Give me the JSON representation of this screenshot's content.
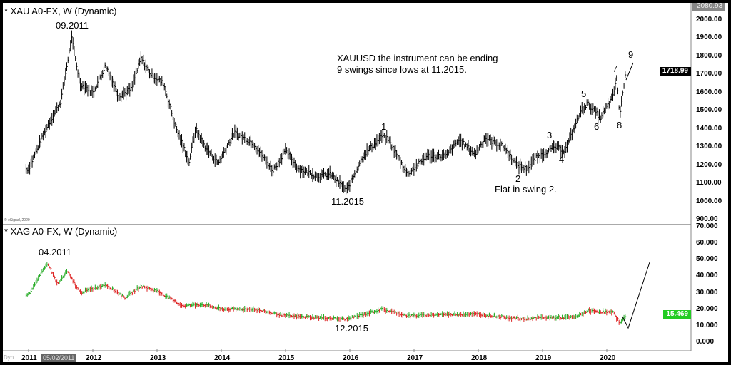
{
  "panels": {
    "gold_title": "* XAU A0-FX, W (Dynamic)",
    "silver_title": "* XAG A0-FX, W (Dynamic)",
    "copyright": "© eSignal, 2020",
    "dyn_label": "Dyn",
    "cursor_date": "05/02/2011"
  },
  "annotations": {
    "gold_high": "09.2011",
    "gold_low": "11.2015",
    "flat": "Flat in swing 2.",
    "note_line1": "XAUUSD the instrument can be ending",
    "note_line2": "9 swings since lows at 11.2015.",
    "waves": [
      "1",
      "2",
      "3",
      "4",
      "5",
      "6",
      "7",
      "8",
      "9"
    ],
    "silver_high": "04.2011",
    "silver_low": "12.2015"
  },
  "chart_data": [
    {
      "type": "bar",
      "title": "* XAU A0-FX, W (Dynamic)",
      "ylim": [
        900,
        2080.93
      ],
      "yticks": [
        "2000.00",
        "1900.00",
        "1800.00",
        "1700.00",
        "1600.00",
        "1500.00",
        "1400.00",
        "1300.00",
        "1200.00",
        "1100.00",
        "1000.00",
        "900.00"
      ],
      "max_label": "2080.93",
      "last_price": "1718.99",
      "color": "#000000",
      "x": [
        2011.0,
        2011.3,
        2011.5,
        2011.67,
        2011.8,
        2012.0,
        2012.2,
        2012.4,
        2012.6,
        2012.75,
        2012.9,
        2013.1,
        2013.3,
        2013.5,
        2013.6,
        2013.75,
        2013.95,
        2014.2,
        2014.5,
        2014.8,
        2015.0,
        2015.2,
        2015.5,
        2015.7,
        2015.95,
        2016.2,
        2016.5,
        2016.6,
        2016.9,
        2017.2,
        2017.5,
        2017.7,
        2017.95,
        2018.1,
        2018.4,
        2018.6,
        2018.75,
        2018.9,
        2019.2,
        2019.35,
        2019.6,
        2019.7,
        2019.9,
        2020.1,
        2020.15,
        2020.2,
        2020.3
      ],
      "y": [
        1180,
        1420,
        1550,
        1900,
        1650,
        1600,
        1750,
        1580,
        1620,
        1790,
        1700,
        1650,
        1400,
        1220,
        1400,
        1300,
        1210,
        1380,
        1320,
        1170,
        1280,
        1180,
        1140,
        1150,
        1060,
        1250,
        1360,
        1340,
        1150,
        1250,
        1250,
        1340,
        1260,
        1350,
        1300,
        1200,
        1180,
        1240,
        1300,
        1280,
        1500,
        1540,
        1460,
        1580,
        1690,
        1480,
        1720
      ]
    },
    {
      "type": "bar",
      "title": "* XAG A0-FX, W (Dynamic)",
      "ylim": [
        -5,
        70
      ],
      "yticks": [
        "70.000",
        "60.000",
        "50.000",
        "40.000",
        "30.000",
        "20.000",
        "10.000",
        "0.000"
      ],
      "last_price": "15.469",
      "up_color": "#22aa22",
      "down_color": "#dd2222",
      "tag_color": "#22cc22",
      "x": [
        2011.0,
        2011.3,
        2011.45,
        2011.6,
        2011.8,
        2012.2,
        2012.5,
        2012.75,
        2013.0,
        2013.4,
        2013.7,
        2014.0,
        2014.5,
        2015.0,
        2015.5,
        2015.95,
        2016.5,
        2016.9,
        2017.5,
        2018.0,
        2018.7,
        2019.0,
        2019.5,
        2019.7,
        2020.1,
        2020.2,
        2020.3
      ],
      "y": [
        29,
        48,
        35,
        43,
        30,
        35,
        27,
        34,
        31,
        22,
        23,
        20,
        20,
        16,
        15,
        14,
        20,
        16,
        17,
        17,
        14,
        15,
        15,
        19,
        18,
        12,
        15.5
      ]
    }
  ],
  "xaxis": {
    "ticks": [
      "2011",
      "2012",
      "2013",
      "2014",
      "2015",
      "2016",
      "2017",
      "2018",
      "2019",
      "2020"
    ]
  }
}
